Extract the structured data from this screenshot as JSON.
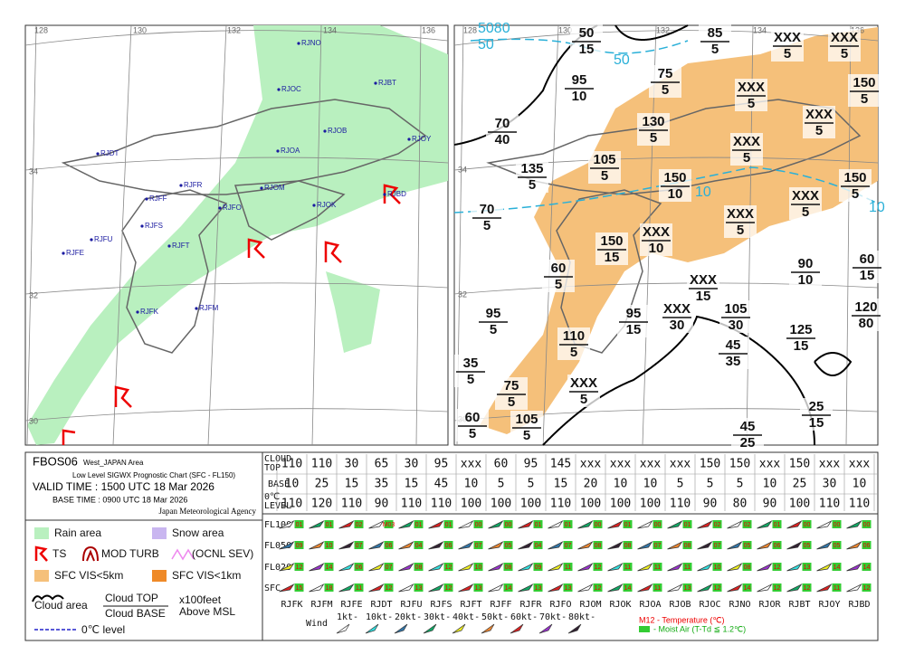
{
  "header": {
    "code": "FBOS06",
    "area": "West_JAPAN Area",
    "subtitle": "Low Level SIGWX Prognostic Chart (SFC - FL150)",
    "valid": "VALID TIME : 1500 UTC 18 Mar 2026",
    "base": "BASE TIME : 0900 UTC 18 Mar 2026",
    "agency": "Japan Meteorological Agency"
  },
  "legend": {
    "rain": "Rain area",
    "snow": "Snow area",
    "ts": "TS",
    "turb": "MOD TURB",
    "sev": "(OCNL SEV)",
    "vis5": "SFC VIS<5km",
    "vis1": "SFC VIS<1km",
    "cloud": "Cloud area",
    "top": "Cloud TOP",
    "base": "Cloud BASE",
    "unit": "x100feet",
    "msl": "Above MSL",
    "zero": "0℃ level"
  },
  "left_map": {
    "lon_labels": [
      "128",
      "130",
      "132",
      "134",
      "136"
    ],
    "lat_labels": [
      "34",
      "32",
      "30"
    ],
    "stations": [
      "RJNO",
      "RJOC",
      "RJBT",
      "RJOB",
      "RJOY",
      "RJOA",
      "RJDT",
      "RJFR",
      "RJOM",
      "RJFF",
      "RJFO",
      "RJOK",
      "RJBD",
      "RJFS",
      "RJFU",
      "RJFT",
      "RJFE",
      "RJFK",
      "RJFM"
    ]
  },
  "right_map": {
    "lon_labels": [
      "128",
      "130",
      "132",
      "134",
      "136"
    ],
    "lat_labels": [
      "34",
      "32",
      "30"
    ],
    "freezing_labels": [
      "5080",
      "50",
      "50",
      "10",
      "10"
    ],
    "clouds": [
      [
        "50",
        "15"
      ],
      [
        "85",
        "5"
      ],
      [
        "XXX",
        "5"
      ],
      [
        "XXX",
        "5"
      ],
      [
        "95",
        "10"
      ],
      [
        "75",
        "5"
      ],
      [
        "XXX",
        "5"
      ],
      [
        "150",
        "5"
      ],
      [
        "70",
        "40"
      ],
      [
        "130",
        "5"
      ],
      [
        "XXX",
        "5"
      ],
      [
        "XXX",
        "5"
      ],
      [
        "135",
        "5"
      ],
      [
        "105",
        "5"
      ],
      [
        "150",
        "10"
      ],
      [
        "150",
        "5"
      ],
      [
        "70",
        "5"
      ],
      [
        "XXX",
        "5"
      ],
      [
        "XXX",
        "5"
      ],
      [
        "150",
        "15"
      ],
      [
        "XXX",
        "10"
      ],
      [
        "90",
        "10"
      ],
      [
        "60",
        "15"
      ],
      [
        "60",
        "5"
      ],
      [
        "XXX",
        "15"
      ],
      [
        "95",
        "5"
      ],
      [
        "95",
        "15"
      ],
      [
        "XXX",
        "30"
      ],
      [
        "105",
        "30"
      ],
      [
        "120",
        "80"
      ],
      [
        "125",
        "15"
      ],
      [
        "110",
        "5"
      ],
      [
        "45",
        "35"
      ],
      [
        "35",
        "5"
      ],
      [
        "75",
        "5"
      ],
      [
        "XXX",
        "5"
      ],
      [
        "25",
        "15"
      ],
      [
        "60",
        "5"
      ],
      [
        "105",
        "5"
      ],
      [
        "45",
        "25"
      ]
    ]
  },
  "table": {
    "row_labels": [
      "CLOUD",
      "TOP",
      "BASE",
      "0℃",
      "LEVEL",
      "FL100",
      "FL050",
      "FL020",
      "SFC"
    ],
    "stations": [
      "RJFK",
      "RJFM",
      "RJFE",
      "RJDT",
      "RJFU",
      "RJFS",
      "RJFT",
      "RJFF",
      "RJFR",
      "RJFO",
      "RJOM",
      "RJOK",
      "RJOA",
      "RJOB",
      "RJOC",
      "RJNO",
      "RJOR",
      "RJBT",
      "RJOY",
      "RJBD"
    ],
    "top": [
      "110",
      "110",
      "30",
      "65",
      "30",
      "95",
      "xxx",
      "60",
      "95",
      "145",
      "xxx",
      "xxx",
      "xxx",
      "xxx",
      "150",
      "150",
      "xxx",
      "150",
      "xxx",
      "xxx"
    ],
    "base": [
      "10",
      "25",
      "15",
      "35",
      "15",
      "45",
      "10",
      "5",
      "5",
      "15",
      "20",
      "10",
      "10",
      "5",
      "5",
      "5",
      "10",
      "25",
      "30",
      "10"
    ],
    "level": [
      "110",
      "120",
      "110",
      "90",
      "110",
      "110",
      "100",
      "100",
      "100",
      "110",
      "100",
      "100",
      "100",
      "110",
      "90",
      "80",
      "90",
      "100",
      "110",
      "110"
    ],
    "fl100": [
      "01",
      "01",
      "02",
      "M03",
      "01",
      "01",
      "00",
      "00",
      "01",
      "01",
      "00",
      "01",
      "00",
      "01",
      "02",
      "02",
      "01",
      "00",
      "00",
      "00"
    ],
    "fl050": [
      "09",
      "10",
      "07",
      "06",
      "04",
      "06",
      "07",
      "05",
      "04",
      "07",
      "08",
      "08",
      "07",
      "08",
      "07",
      "05",
      "06",
      "05",
      "05",
      "06"
    ],
    "fl020": [
      "12",
      "14",
      "06",
      "07",
      "08",
      "12",
      "10",
      "08",
      "09",
      "11",
      "12",
      "11",
      "11",
      "11",
      "10",
      "08",
      "12",
      "13",
      "14",
      "14"
    ],
    "sfc": [
      "15",
      "18",
      "11",
      "12",
      "13",
      "12",
      "13",
      "14",
      "13",
      "13",
      "12",
      "14",
      "11",
      "13",
      "12",
      "14",
      "12",
      "12",
      "11",
      "12"
    ],
    "wind_title": "Wind",
    "wind_scale": [
      "1kt-",
      "10kt-",
      "20kt-",
      "30kt-",
      "40kt-",
      "50kt-",
      "60kt-",
      "70kt-",
      "80kt-"
    ],
    "temp_note": "M12 - Temperature (℃)",
    "moist_note": "- Moist Air (T-Td ≦ 1.2℃)"
  }
}
